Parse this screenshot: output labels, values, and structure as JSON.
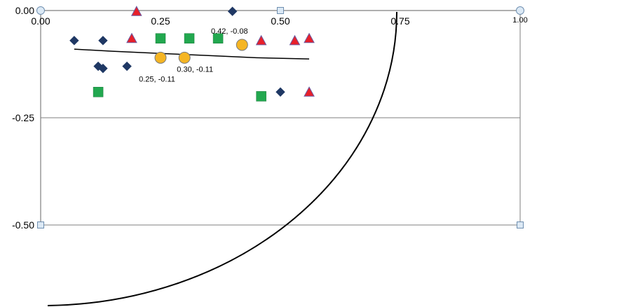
{
  "chart_data": {
    "type": "scatter",
    "title": "",
    "xlabel": "",
    "ylabel": "",
    "xlim": [
      0,
      1
    ],
    "ylim": [
      -0.5,
      0
    ],
    "x_ticks": [
      {
        "value": 0,
        "label": "0.00"
      },
      {
        "value": 0.25,
        "label": "0.25"
      },
      {
        "value": 0.5,
        "label": "0.50"
      },
      {
        "value": 0.75,
        "label": "0.75"
      },
      {
        "value": 1,
        "label": "1.00"
      }
    ],
    "y_ticks": [
      {
        "value": 0,
        "label": "0.00"
      },
      {
        "value": -0.25,
        "label": "-0.25"
      },
      {
        "value": -0.5,
        "label": "-0.50"
      }
    ],
    "grid": "horizontal",
    "legend": "none",
    "colors": {
      "diamond": "#1f3864",
      "triangle": "#e8202a",
      "triangle_edge": "#6b5aa0",
      "square": "#22a84f",
      "circle": "#f5b523",
      "circle_edge": "#7a7a7a",
      "handle_fill": "#dce9f5",
      "handle_edge": "#6f8fb0",
      "axis": "#7f7f7f",
      "curve": "#000000"
    },
    "series": [
      {
        "marker": "diamond",
        "points": [
          [
            0.07,
            -0.07
          ],
          [
            0.13,
            -0.07
          ],
          [
            0.12,
            -0.13
          ],
          [
            0.13,
            -0.135
          ],
          [
            0.18,
            -0.13
          ],
          [
            0.5,
            -0.19
          ],
          [
            0.4,
            -0.002
          ]
        ]
      },
      {
        "marker": "triangle",
        "points": [
          [
            0.19,
            -0.065
          ],
          [
            0.46,
            -0.07
          ],
          [
            0.53,
            -0.07
          ],
          [
            0.56,
            -0.065
          ],
          [
            0.56,
            -0.19
          ],
          [
            0.2,
            -0.002
          ]
        ]
      },
      {
        "marker": "square",
        "points": [
          [
            0.25,
            -0.065
          ],
          [
            0.31,
            -0.065
          ],
          [
            0.37,
            -0.065
          ],
          [
            0.12,
            -0.19
          ],
          [
            0.46,
            -0.2
          ]
        ]
      },
      {
        "marker": "circle",
        "points": [
          [
            0.25,
            -0.11
          ],
          [
            0.3,
            -0.11
          ],
          [
            0.42,
            -0.08
          ]
        ]
      }
    ],
    "annotations": [
      {
        "text": "0.25, -0.11",
        "x": 0.25,
        "y": -0.11
      },
      {
        "text": "0.30, -0.11",
        "x": 0.3,
        "y": -0.11
      },
      {
        "text": "0.42, -0.08",
        "x": 0.42,
        "y": -0.08
      }
    ],
    "trend_line": [
      [
        0.07,
        -0.09
      ],
      [
        0.15,
        -0.095
      ],
      [
        0.25,
        -0.1
      ],
      [
        0.35,
        -0.105
      ],
      [
        0.45,
        -0.11
      ],
      [
        0.56,
        -0.113
      ]
    ],
    "arc": {
      "center": [
        0,
        0
      ],
      "radius": 0.75
    }
  }
}
